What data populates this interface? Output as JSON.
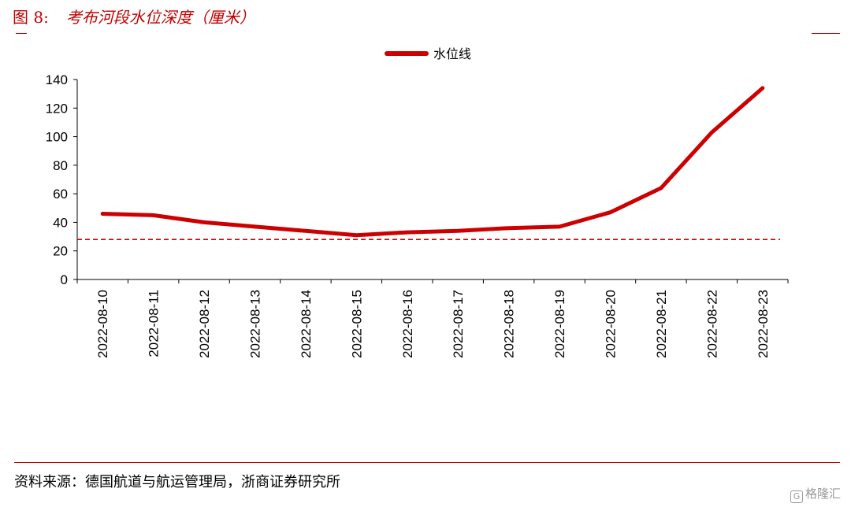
{
  "figure": {
    "number": "图 8:",
    "title": "考布河段水位深度（厘米）"
  },
  "source": "资料来源：德国航道与航运管理局，浙商证券研究所",
  "watermark": "格隆汇",
  "colors": {
    "accent": "#c00000",
    "series": "#cc0000",
    "axis": "#000000"
  },
  "chart_data": {
    "type": "line",
    "title": "",
    "xlabel": "",
    "ylabel": "",
    "categories": [
      "2022-08-10",
      "2022-08-11",
      "2022-08-12",
      "2022-08-13",
      "2022-08-14",
      "2022-08-15",
      "2022-08-16",
      "2022-08-17",
      "2022-08-18",
      "2022-08-19",
      "2022-08-20",
      "2022-08-21",
      "2022-08-22",
      "2022-08-23"
    ],
    "series": [
      {
        "name": "水位线",
        "values": [
          46,
          45,
          40,
          37,
          34,
          31,
          33,
          34,
          36,
          37,
          47,
          64,
          103,
          134
        ]
      }
    ],
    "reference_line": {
      "value": 28,
      "style": "dashed"
    },
    "ylim": [
      0,
      140
    ],
    "yticks": [
      0,
      20,
      40,
      60,
      80,
      100,
      120,
      140
    ],
    "grid": false,
    "legend": "top-center"
  }
}
